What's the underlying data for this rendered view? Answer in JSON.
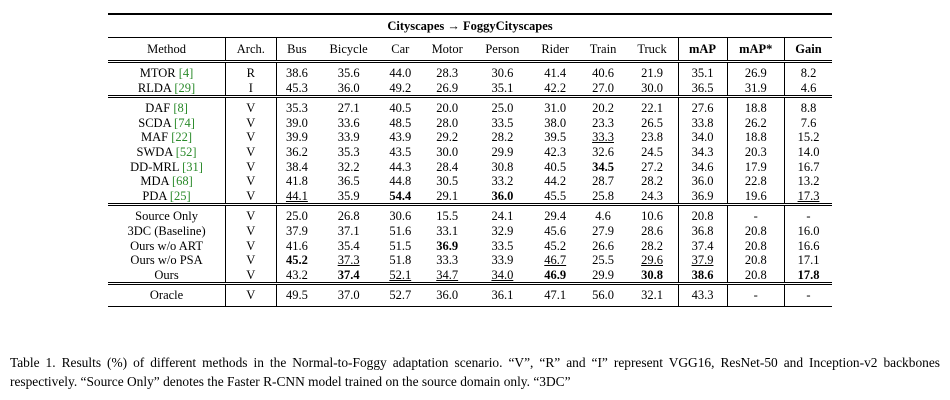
{
  "table": {
    "title": "Cityscapes → FoggyCityscapes",
    "headers": [
      "Method",
      "Arch.",
      "Bus",
      "Bicycle",
      "Car",
      "Motor",
      "Person",
      "Rider",
      "Train",
      "Truck",
      "mAP",
      "mAP*",
      "Gain"
    ],
    "groups": [
      [
        {
          "method": "MTOR",
          "ref": "[4]",
          "arch": "R",
          "values": [
            "38.6",
            "35.6",
            "44.0",
            "28.3",
            "30.6",
            "41.4",
            "40.6",
            "21.9",
            "35.1",
            "26.9",
            "8.2"
          ]
        },
        {
          "method": "RLDA",
          "ref": "[29]",
          "arch": "I",
          "values": [
            "45.3",
            "36.0",
            "49.2",
            "26.9",
            "35.1",
            "42.2",
            "27.0",
            "30.0",
            "36.5",
            "31.9",
            "4.6"
          ]
        }
      ],
      [
        {
          "method": "DAF",
          "ref": "[8]",
          "arch": "V",
          "values": [
            "35.3",
            "27.1",
            "40.5",
            "20.0",
            "25.0",
            "31.0",
            "20.2",
            "22.1",
            "27.6",
            "18.8",
            "8.8"
          ]
        },
        {
          "method": "SCDA",
          "ref": "[74]",
          "arch": "V",
          "values": [
            "39.0",
            "33.6",
            "48.5",
            "28.0",
            "33.5",
            "38.0",
            "23.3",
            "26.5",
            "33.8",
            "26.2",
            "7.6"
          ]
        },
        {
          "method": "MAF",
          "ref": "[22]",
          "arch": "V",
          "values": [
            "39.9",
            "33.9",
            "43.9",
            "29.2",
            "28.2",
            "39.5",
            "33.3",
            "23.8",
            "34.0",
            "18.8",
            "15.2"
          ]
        },
        {
          "method": "SWDA",
          "ref": "[52]",
          "arch": "V",
          "values": [
            "36.2",
            "35.3",
            "43.5",
            "30.0",
            "29.9",
            "42.3",
            "32.6",
            "24.5",
            "34.3",
            "20.3",
            "14.0"
          ]
        },
        {
          "method": "DD-MRL",
          "ref": "[31]",
          "arch": "V",
          "values": [
            "38.4",
            "32.2",
            "44.3",
            "28.4",
            "30.8",
            "40.5",
            "34.5",
            "27.2",
            "34.6",
            "17.9",
            "16.7"
          ]
        },
        {
          "method": "MDA",
          "ref": "[68]",
          "arch": "V",
          "values": [
            "41.8",
            "36.5",
            "44.8",
            "30.5",
            "33.2",
            "44.2",
            "28.7",
            "28.2",
            "36.0",
            "22.8",
            "13.2"
          ]
        },
        {
          "method": "PDA",
          "ref": "[25]",
          "arch": "V",
          "values": [
            "44.1",
            "35.9",
            "54.4",
            "29.1",
            "36.0",
            "45.5",
            "25.8",
            "24.3",
            "36.9",
            "19.6",
            "17.3"
          ]
        }
      ],
      [
        {
          "method": "Source Only",
          "arch": "V",
          "values": [
            "25.0",
            "26.8",
            "30.6",
            "15.5",
            "24.1",
            "29.4",
            "4.6",
            "10.6",
            "20.8",
            "-",
            "-"
          ]
        },
        {
          "method": "3DC (Baseline)",
          "arch": "V",
          "values": [
            "37.9",
            "37.1",
            "51.6",
            "33.1",
            "32.9",
            "45.6",
            "27.9",
            "28.6",
            "36.8",
            "20.8",
            "16.0"
          ]
        },
        {
          "method": "Ours w/o ART",
          "arch": "V",
          "values": [
            "41.6",
            "35.4",
            "51.5",
            "36.9",
            "33.5",
            "45.2",
            "26.6",
            "28.2",
            "37.4",
            "20.8",
            "16.6"
          ]
        },
        {
          "method": "Ours w/o PSA",
          "arch": "V",
          "values": [
            "45.2",
            "37.3",
            "51.8",
            "33.3",
            "33.9",
            "46.7",
            "25.5",
            "29.6",
            "37.9",
            "20.8",
            "17.1"
          ]
        },
        {
          "method": "Ours",
          "arch": "V",
          "values": [
            "43.2",
            "37.4",
            "52.1",
            "34.7",
            "34.0",
            "46.9",
            "29.9",
            "30.8",
            "38.6",
            "20.8",
            "17.8"
          ]
        }
      ],
      [
        {
          "method": "Oracle",
          "arch": "V",
          "values": [
            "49.5",
            "37.0",
            "52.7",
            "36.0",
            "36.1",
            "47.1",
            "56.0",
            "32.1",
            "43.3",
            "-",
            "-"
          ]
        }
      ]
    ]
  },
  "caption": "Table 1. Results (%) of different methods in the Normal-to-Foggy adaptation scenario. “V”, “R” and “I” represent VGG16, ResNet-50 and Inception-v2 backbones respectively. “Source Only” denotes the Faster R-CNN model trained on the source domain only. “3DC”"
}
